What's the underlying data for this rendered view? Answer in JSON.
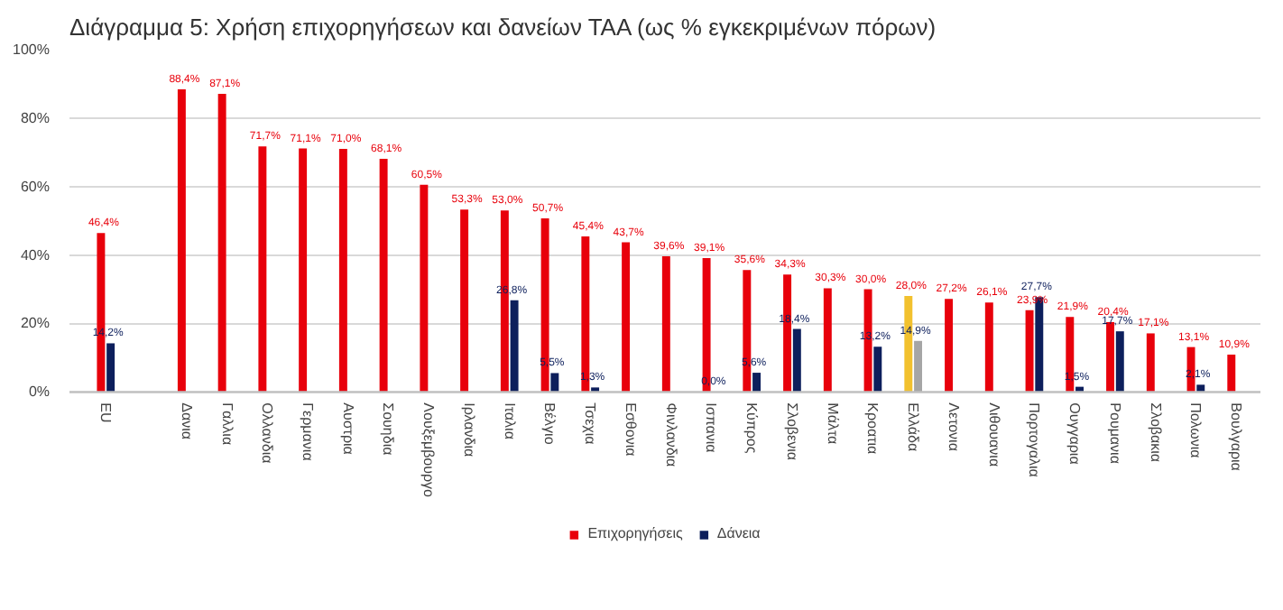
{
  "chart_data": {
    "type": "bar",
    "title": "Διάγραμμα 5: Χρήση επιχορηγήσεων  και δανείων ΤΑΑ (ως % εγκεκριμένων πόρων)",
    "categories": [
      "EU",
      null,
      "Δανια",
      "Γαλλια",
      "Ολλανδια",
      "Γερμανια",
      "Αυστρια",
      "Σουηδια",
      "Λουξεμβουργο",
      "Ιρλανδια",
      "Ιταλια",
      "Βέλγιο",
      "Τσεχια",
      "Εσθονια",
      "Φινλανδια",
      "Ισπανια",
      "Κύπρος",
      "Σλοβενια",
      "Μάλτα",
      "Κροατια",
      "Ελλάδα",
      "Λετονια",
      "Λιθουανια",
      "Πορτογαλια",
      "Ουγγαρια",
      "Ρουμανια",
      "Σλοβακια",
      "Πολωνια",
      "Βουλγαρια"
    ],
    "series": [
      {
        "name": "Επιχορηγήσεις",
        "color": "#e8000b",
        "values": [
          46.4,
          null,
          88.4,
          87.1,
          71.7,
          71.1,
          71.0,
          68.1,
          60.5,
          53.3,
          53.0,
          50.7,
          45.4,
          43.7,
          39.6,
          39.1,
          35.6,
          34.3,
          30.3,
          30.0,
          28.0,
          27.2,
          26.1,
          23.9,
          21.9,
          20.4,
          17.1,
          13.1,
          10.9
        ],
        "colors": [
          "#e8000b",
          null,
          "#e8000b",
          "#e8000b",
          "#e8000b",
          "#e8000b",
          "#e8000b",
          "#e8000b",
          "#e8000b",
          "#e8000b",
          "#e8000b",
          "#e8000b",
          "#e8000b",
          "#e8000b",
          "#e8000b",
          "#e8000b",
          "#e8000b",
          "#e8000b",
          "#e8000b",
          "#e8000b",
          "#f2c12e",
          "#e8000b",
          "#e8000b",
          "#e8000b",
          "#e8000b",
          "#e8000b",
          "#e8000b",
          "#e8000b",
          "#e8000b"
        ],
        "value_labels": [
          "46,4%",
          null,
          "88,4%",
          "87,1%",
          "71,7%",
          "71,1%",
          "71,0%",
          "68,1%",
          "60,5%",
          "53,3%",
          "53,0%",
          "50,7%",
          "45,4%",
          "43,7%",
          "39,6%",
          "39,1%",
          "35,6%",
          "34,3%",
          "30,3%",
          "30,0%",
          "28,0%",
          "27,2%",
          "26,1%",
          "23,9%",
          "21,9%",
          "20,4%",
          "17,1%",
          "13,1%",
          "10,9%"
        ]
      },
      {
        "name": "Δάνεια",
        "color": "#0d1f5c",
        "values": [
          14.2,
          null,
          null,
          null,
          null,
          null,
          null,
          null,
          null,
          null,
          26.8,
          5.5,
          1.3,
          null,
          null,
          0.0,
          5.6,
          18.4,
          null,
          13.2,
          14.9,
          null,
          null,
          27.7,
          1.5,
          17.7,
          null,
          2.1,
          null
        ],
        "colors": [
          "#0d1f5c",
          null,
          null,
          null,
          null,
          null,
          null,
          null,
          null,
          null,
          "#0d1f5c",
          "#0d1f5c",
          "#0d1f5c",
          null,
          null,
          "#0d1f5c",
          "#0d1f5c",
          "#0d1f5c",
          null,
          "#0d1f5c",
          "#a6a6a6",
          null,
          null,
          "#0d1f5c",
          "#0d1f5c",
          "#0d1f5c",
          null,
          "#0d1f5c",
          null
        ],
        "value_labels": [
          "14,2%",
          null,
          null,
          null,
          null,
          null,
          null,
          null,
          null,
          null,
          "26,8%",
          "5,5%",
          "1,3%",
          null,
          null,
          "0,0%",
          "5,6%",
          "18,4%",
          null,
          "13,2%",
          "14,9%",
          null,
          null,
          "27,7%",
          "1,5%",
          "17,7%",
          null,
          "2,1%",
          null
        ]
      }
    ],
    "ylim": [
      0,
      100
    ],
    "yticks": [
      {
        "value": 0,
        "label": "0%"
      },
      {
        "value": 20,
        "label": "20%"
      },
      {
        "value": 40,
        "label": "40%"
      },
      {
        "value": 60,
        "label": "60%"
      },
      {
        "value": 80,
        "label": "80%"
      },
      {
        "value": 100,
        "label": "100%"
      }
    ],
    "grid": "y",
    "legend": "bottom"
  }
}
